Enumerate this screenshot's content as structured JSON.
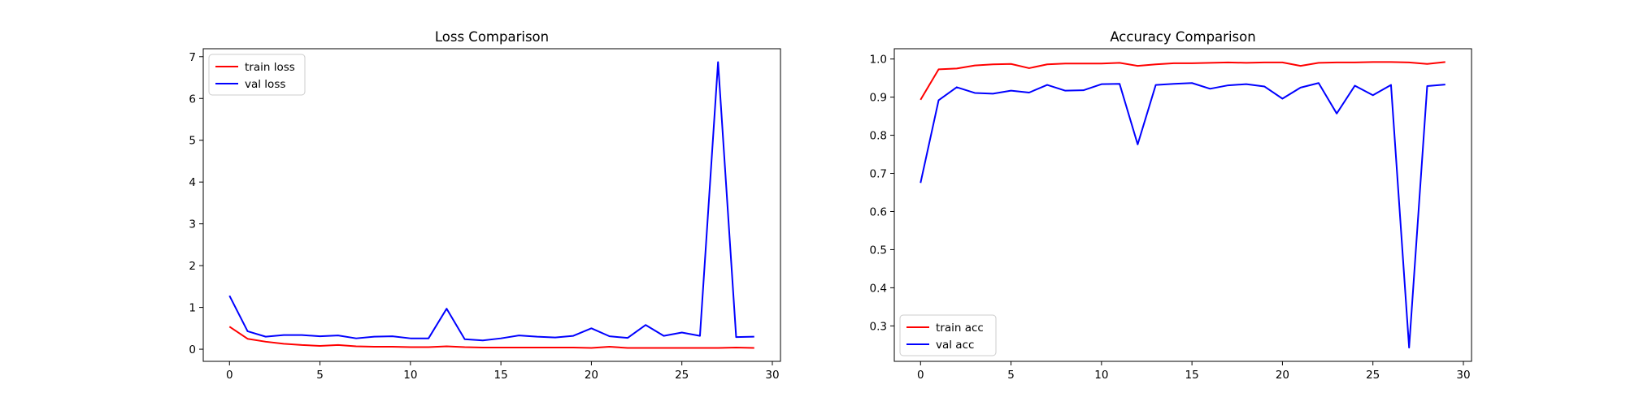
{
  "chart_data": [
    {
      "type": "line",
      "title": "Loss Comparison",
      "xlabel": "",
      "ylabel": "",
      "x": [
        0,
        1,
        2,
        3,
        4,
        5,
        6,
        7,
        8,
        9,
        10,
        11,
        12,
        13,
        14,
        15,
        16,
        17,
        18,
        19,
        20,
        21,
        22,
        23,
        24,
        25,
        26,
        27,
        28,
        29
      ],
      "xlim": [
        -1.45,
        30.45
      ],
      "ylim": [
        -0.29,
        7.19
      ],
      "xticks": [
        0,
        5,
        10,
        15,
        20,
        25,
        30
      ],
      "xtick_labels": [
        "0",
        "5",
        "10",
        "15",
        "20",
        "25",
        "30"
      ],
      "yticks": [
        0,
        1,
        2,
        3,
        4,
        5,
        6,
        7
      ],
      "ytick_labels": [
        "0",
        "1",
        "2",
        "3",
        "4",
        "5",
        "6",
        "7"
      ],
      "grid": false,
      "legend": "upper left",
      "series": [
        {
          "name": "train loss",
          "color": "#ff0000",
          "values": [
            0.54,
            0.25,
            0.18,
            0.13,
            0.1,
            0.08,
            0.1,
            0.07,
            0.06,
            0.06,
            0.05,
            0.05,
            0.07,
            0.05,
            0.04,
            0.04,
            0.04,
            0.04,
            0.04,
            0.04,
            0.03,
            0.06,
            0.03,
            0.03,
            0.03,
            0.03,
            0.03,
            0.03,
            0.04,
            0.03
          ]
        },
        {
          "name": "val loss",
          "color": "#0000ff",
          "values": [
            1.28,
            0.43,
            0.3,
            0.34,
            0.34,
            0.31,
            0.33,
            0.26,
            0.3,
            0.31,
            0.26,
            0.26,
            0.97,
            0.24,
            0.21,
            0.26,
            0.33,
            0.3,
            0.28,
            0.32,
            0.5,
            0.31,
            0.27,
            0.58,
            0.32,
            0.4,
            0.32,
            6.87,
            0.29,
            0.3
          ]
        }
      ]
    },
    {
      "type": "line",
      "title": "Accuracy Comparison",
      "xlabel": "",
      "ylabel": "",
      "x": [
        0,
        1,
        2,
        3,
        4,
        5,
        6,
        7,
        8,
        9,
        10,
        11,
        12,
        13,
        14,
        15,
        16,
        17,
        18,
        19,
        20,
        21,
        22,
        23,
        24,
        25,
        26,
        27,
        28,
        29
      ],
      "xlim": [
        -1.45,
        30.45
      ],
      "ylim": [
        0.207,
        1.027
      ],
      "xticks": [
        0,
        5,
        10,
        15,
        20,
        25,
        30
      ],
      "xtick_labels": [
        "0",
        "5",
        "10",
        "15",
        "20",
        "25",
        "30"
      ],
      "yticks": [
        0.3,
        0.4,
        0.5,
        0.6,
        0.7,
        0.8,
        0.9,
        1.0
      ],
      "ytick_labels": [
        "0.3",
        "0.4",
        "0.5",
        "0.6",
        "0.7",
        "0.8",
        "0.9",
        "1.0"
      ],
      "grid": false,
      "legend": "lower left",
      "series": [
        {
          "name": "train acc",
          "color": "#ff0000",
          "values": [
            0.893,
            0.973,
            0.975,
            0.983,
            0.986,
            0.987,
            0.976,
            0.986,
            0.988,
            0.988,
            0.988,
            0.99,
            0.982,
            0.986,
            0.989,
            0.989,
            0.99,
            0.991,
            0.99,
            0.991,
            0.991,
            0.982,
            0.99,
            0.991,
            0.991,
            0.992,
            0.992,
            0.991,
            0.987,
            0.992
          ]
        },
        {
          "name": "val acc",
          "color": "#0000ff",
          "values": [
            0.675,
            0.892,
            0.926,
            0.911,
            0.909,
            0.917,
            0.912,
            0.932,
            0.917,
            0.918,
            0.934,
            0.935,
            0.776,
            0.932,
            0.935,
            0.937,
            0.922,
            0.931,
            0.934,
            0.928,
            0.896,
            0.925,
            0.937,
            0.857,
            0.93,
            0.905,
            0.932,
            0.243,
            0.929,
            0.933
          ]
        }
      ]
    }
  ]
}
